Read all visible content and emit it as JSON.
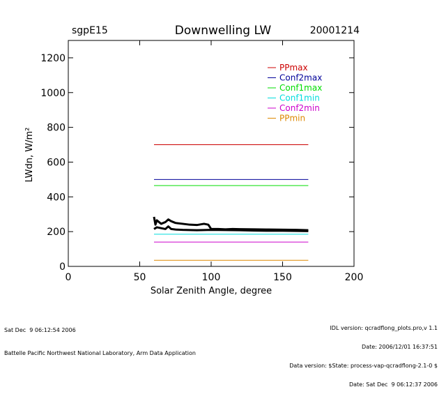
{
  "header": {
    "site": "sgpE15",
    "title": "Downwelling LW",
    "date": "20001214"
  },
  "footer": {
    "left": [
      "Sat Dec  9 06:12:54 2006",
      "Battelle Pacific Northwest National Laboratory, Arm Data Application"
    ],
    "right": [
      "IDL version: qcradflong_plots.pro,v 1.1",
      "Date: 2006/12/01 16:37:51",
      "Data version: $State: process-vap-qcradflong-2.1-0 $",
      "Date: Sat Dec  9 06:12:37 2006"
    ]
  },
  "colors": {
    "PPmax": "#cc0000",
    "Conf2max": "#000099",
    "Conf1max": "#00dd00",
    "Conf1min": "#00dddd",
    "Conf2min": "#cc00cc",
    "PPmin": "#dd8800",
    "data": "#000000"
  },
  "chart_data": {
    "type": "line",
    "title": "Downwelling LW",
    "xlabel": "Solar Zenith Angle, degree",
    "ylabel": "LWdn, W/m²",
    "xlim": [
      0,
      200
    ],
    "ylim": [
      0,
      1300
    ],
    "xticks": [
      0,
      50,
      100,
      150,
      200
    ],
    "yticks": [
      0,
      200,
      400,
      600,
      800,
      1000,
      1200
    ],
    "legend_position": "top-right",
    "limits": [
      {
        "name": "PPmax",
        "x": [
          60,
          168
        ],
        "y": 700
      },
      {
        "name": "Conf2max",
        "x": [
          60,
          168
        ],
        "y": 500
      },
      {
        "name": "Conf1max",
        "x": [
          60,
          168
        ],
        "y": 465
      },
      {
        "name": "Conf1min",
        "x": [
          60,
          168
        ],
        "y": 185
      },
      {
        "name": "Conf2min",
        "x": [
          60,
          168
        ],
        "y": 140
      },
      {
        "name": "PPmin",
        "x": [
          60,
          168
        ],
        "y": 35
      }
    ],
    "series": [
      {
        "x": [
          60,
          61,
          62,
          65,
          68,
          70,
          72,
          75,
          80,
          85,
          90,
          95,
          98,
          100,
          105,
          110,
          115,
          120,
          130,
          140,
          150,
          160,
          168
        ],
        "y": [
          285,
          240,
          265,
          245,
          255,
          270,
          260,
          250,
          245,
          240,
          238,
          245,
          240,
          215,
          215,
          213,
          215,
          214,
          213,
          212,
          211,
          210,
          208
        ]
      },
      {
        "x": [
          60,
          62,
          65,
          68,
          70,
          72,
          75,
          80,
          90,
          100,
          110,
          120,
          130,
          140,
          150,
          160,
          168
        ],
        "y": [
          215,
          225,
          220,
          215,
          230,
          215,
          212,
          210,
          208,
          210,
          209,
          208,
          206,
          205,
          205,
          204,
          203
        ]
      }
    ]
  }
}
